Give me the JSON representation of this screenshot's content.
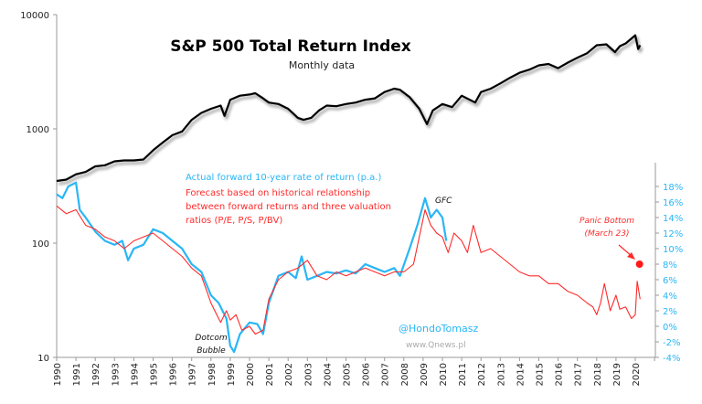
{
  "chart_data": {
    "type": "line",
    "title": "S&P 500 Total Return Index",
    "subtitle": "Monthly data",
    "left_axis": {
      "scale": "log",
      "ylim": [
        10,
        10000
      ],
      "ticks": [
        "10",
        "100",
        "1000",
        "10000"
      ]
    },
    "right_axis": {
      "ylim": [
        -4,
        19
      ],
      "ticks": [
        "-4%",
        "-2%",
        "0%",
        "2%",
        "4%",
        "6%",
        "8%",
        "10%",
        "12%",
        "14%",
        "16%",
        "18%"
      ],
      "color": "#29b6f6"
    },
    "x_ticks": [
      "1990",
      "1991",
      "1992",
      "1993",
      "1994",
      "1995",
      "1996",
      "1997",
      "1998",
      "1999",
      "2000",
      "2001",
      "2002",
      "2003",
      "2004",
      "2005",
      "2006",
      "2007",
      "2008",
      "2009",
      "2010",
      "2011",
      "2012",
      "2013",
      "2014",
      "2015",
      "2016",
      "2017",
      "2018",
      "2019",
      "2020"
    ],
    "xlim": [
      1990,
      2021.2
    ],
    "grid": false,
    "series": [
      {
        "axis": "left",
        "color": "#000000",
        "x": [
          1990,
          1990.5,
          1991,
          1991.5,
          1992,
          1992.5,
          1993,
          1993.5,
          1994,
          1994.5,
          1995,
          1995.5,
          1996,
          1996.5,
          1997,
          1997.5,
          1998,
          1998.5,
          1998.7,
          1999,
          1999.5,
          2000,
          2000.3,
          2000.7,
          2001,
          2001.5,
          2002,
          2002.5,
          2002.8,
          2003.2,
          2003.6,
          2004,
          2004.5,
          2005,
          2005.5,
          2006,
          2006.5,
          2007,
          2007.5,
          2007.8,
          2008.3,
          2008.8,
          2009.2,
          2009.5,
          2010,
          2010.5,
          2011,
          2011.7,
          2012,
          2012.5,
          2013,
          2013.5,
          2014,
          2014.5,
          2015,
          2015.5,
          2016,
          2016.5,
          2017,
          2017.5,
          2018,
          2018.5,
          2018.95,
          2019.2,
          2019.5,
          2020.0,
          2020.15,
          2020.25
        ],
        "values": [
          350,
          360,
          400,
          420,
          470,
          480,
          520,
          530,
          530,
          540,
          650,
          760,
          880,
          950,
          1200,
          1380,
          1500,
          1600,
          1300,
          1800,
          1950,
          2000,
          2050,
          1850,
          1700,
          1650,
          1500,
          1250,
          1200,
          1250,
          1450,
          1600,
          1580,
          1650,
          1700,
          1800,
          1850,
          2100,
          2250,
          2200,
          1900,
          1500,
          1100,
          1450,
          1650,
          1550,
          1950,
          1700,
          2100,
          2250,
          2500,
          2800,
          3100,
          3300,
          3600,
          3700,
          3400,
          3800,
          4200,
          4600,
          5400,
          5500,
          4700,
          5300,
          5600,
          6600,
          5000,
          5400
        ]
      },
      {
        "name": "Actual forward 10-year rate of return  (p.a.)",
        "axis": "right",
        "color": "#29b6f6",
        "x": [
          1990,
          1990.3,
          1990.6,
          1991,
          1991.2,
          1991.5,
          1992,
          1992.5,
          1993,
          1993.4,
          1993.7,
          1994,
          1994.5,
          1995,
          1995.5,
          1996,
          1996.5,
          1997,
          1997.5,
          1998,
          1998.4,
          1998.8,
          1999,
          1999.2,
          1999.5,
          2000,
          2000.4,
          2000.7,
          2001,
          2001.5,
          2002,
          2002.4,
          2002.7,
          2003,
          2003.5,
          2004,
          2004.5,
          2005,
          2005.5,
          2006,
          2006.5,
          2007,
          2007.5,
          2007.8,
          2008.3,
          2008.7,
          2009.1,
          2009.4,
          2009.7,
          2010,
          2010.2
        ],
        "values": [
          17,
          16.5,
          18,
          18.5,
          15,
          14,
          12.2,
          11,
          10.5,
          11,
          8.5,
          10,
          10.5,
          12.5,
          12,
          11,
          10,
          8,
          7,
          4,
          3,
          1,
          -2.5,
          -3.3,
          -1,
          0.5,
          0.3,
          -1,
          3,
          6.5,
          7,
          6.2,
          9,
          6,
          6.5,
          7,
          6.8,
          7.2,
          6.8,
          8,
          7.5,
          7,
          7.5,
          6.5,
          10,
          13,
          16.5,
          14,
          15,
          14,
          11
        ]
      },
      {
        "name": "Forecast based on historical relationship between  forward returns and three  valuation ratios (P/E, P/S, P/BV)",
        "axis": "right",
        "color": "#ff2a2a",
        "x": [
          1990,
          1990.5,
          1991,
          1991.5,
          1992,
          1992.5,
          1993,
          1993.5,
          1994,
          1994.5,
          1995,
          1995.5,
          1996,
          1996.5,
          1997,
          1997.5,
          1998,
          1998.3,
          1998.5,
          1998.8,
          1999,
          1999.3,
          1999.6,
          2000,
          2000.3,
          2000.7,
          2001,
          2001.5,
          2002,
          2002.5,
          2003,
          2003.5,
          2004,
          2004.5,
          2005,
          2005.5,
          2006,
          2006.5,
          2007,
          2007.5,
          2008,
          2008.5,
          2009.1,
          2009.4,
          2009.7,
          2010,
          2010.3,
          2010.6,
          2011,
          2011.3,
          2011.6,
          2012,
          2012.5,
          2013,
          2013.5,
          2014,
          2014.5,
          2015,
          2015.5,
          2016,
          2016.5,
          2017,
          2017.5,
          2017.8,
          2018.0,
          2018.2,
          2018.4,
          2018.7,
          2019,
          2019.2,
          2019.5,
          2019.8,
          2020.0,
          2020.1,
          2020.25
        ],
        "values": [
          15.5,
          14.5,
          15,
          13,
          12.5,
          11.5,
          11,
          10,
          11,
          11.5,
          12,
          11,
          10,
          9,
          7.5,
          6.5,
          3,
          1.5,
          0.5,
          2,
          0.8,
          1.5,
          -0.5,
          0,
          -1,
          -0.5,
          3.5,
          6,
          7,
          7.5,
          8.5,
          6.5,
          6,
          7,
          6.5,
          7,
          7.5,
          7,
          6.5,
          7,
          7,
          8,
          15,
          13,
          12,
          11.5,
          9.5,
          12,
          11,
          9.5,
          13,
          9.5,
          10,
          9,
          8,
          7,
          6.5,
          6.5,
          5.5,
          5.5,
          4.5,
          4,
          3,
          2.5,
          1.5,
          3,
          5.5,
          2,
          4,
          2.2,
          2.5,
          1,
          1.5,
          5.8,
          3.5
        ]
      }
    ],
    "annotations": {
      "gfc": "GFC",
      "dotcom_line1": "Dotcom",
      "dotcom_line2": "Bubble",
      "panic_line1": "Panic Bottom",
      "panic_line2": "(March 23)",
      "panic_value": 8,
      "panic_x": 2020.22
    },
    "legend_blue": "Actual forward 10-year rate of return  (p.a.)",
    "legend_red_lines": [
      "Forecast based on historical relationship",
      "between  forward returns and three  valuation",
      "ratios (P/E, P/S, P/BV)"
    ],
    "watermark_handle": "@HondoTomasz",
    "watermark_site": "www.Qnews.pl"
  }
}
